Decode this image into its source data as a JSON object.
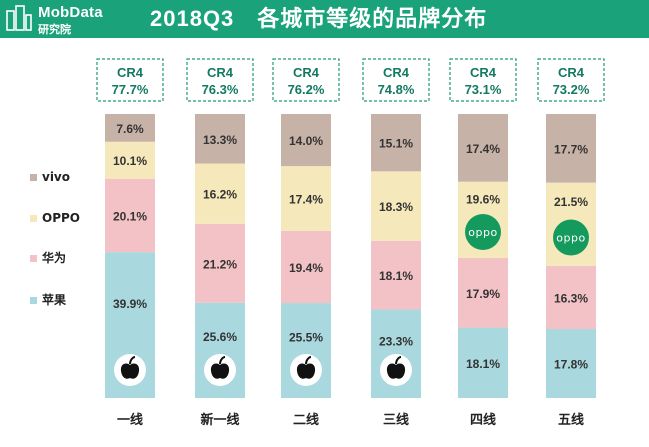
{
  "header": {
    "logo_name": "MobData",
    "logo_sub": "研究院",
    "title": "2018Q3　各城市等级的品牌分布"
  },
  "colors": {
    "header": "#1aa37a",
    "vivo": "#c7b2a8",
    "OPPO": "#f5e8bb",
    "huawei": "#f3c2c6",
    "apple": "#a9d8df",
    "cr4_border": "#1c9a7a",
    "cr4_text": "#137a62",
    "oppo_logo": "#149a5c",
    "label": "#333333"
  },
  "chart_data": {
    "type": "bar",
    "stacked": true,
    "categories": [
      "一线",
      "新一线",
      "二线",
      "三线",
      "四线",
      "五线"
    ],
    "series": [
      {
        "name": "苹果",
        "values": [
          39.9,
          25.6,
          25.5,
          23.3,
          18.1,
          17.8
        ]
      },
      {
        "name": "华为",
        "values": [
          20.1,
          21.2,
          19.4,
          18.1,
          17.9,
          16.3
        ]
      },
      {
        "name": "OPPO",
        "values": [
          10.1,
          16.2,
          17.4,
          18.3,
          19.6,
          21.5
        ]
      },
      {
        "name": "vivo",
        "values": [
          7.6,
          13.3,
          14.0,
          15.1,
          17.4,
          17.7
        ]
      }
    ],
    "series_keys": [
      "apple",
      "huawei",
      "OPPO",
      "vivo"
    ],
    "value_suffix": "%",
    "cr4": {
      "label": "CR4",
      "values": [
        "77.7%",
        "76.3%",
        "76.2%",
        "74.8%",
        "73.1%",
        "73.2%"
      ]
    },
    "segment_icons": [
      [
        "apple-logo-icon",
        "",
        "",
        ""
      ],
      [
        "apple-logo-icon",
        "",
        "",
        ""
      ],
      [
        "apple-logo-icon",
        "",
        "",
        ""
      ],
      [
        "apple-logo-icon",
        "",
        "",
        ""
      ],
      [
        "",
        "",
        "oppo-logo-icon",
        ""
      ],
      [
        "",
        "",
        "oppo-logo-icon",
        ""
      ]
    ],
    "legend": {
      "position": "left",
      "items": [
        {
          "name": "vivo",
          "key": "vivo"
        },
        {
          "name": "OPPO",
          "key": "OPPO"
        },
        {
          "name": "华为",
          "key": "huawei"
        },
        {
          "name": "苹果",
          "key": "apple"
        }
      ]
    },
    "oppo_logo_text": "oppo",
    "gridlines": false
  }
}
